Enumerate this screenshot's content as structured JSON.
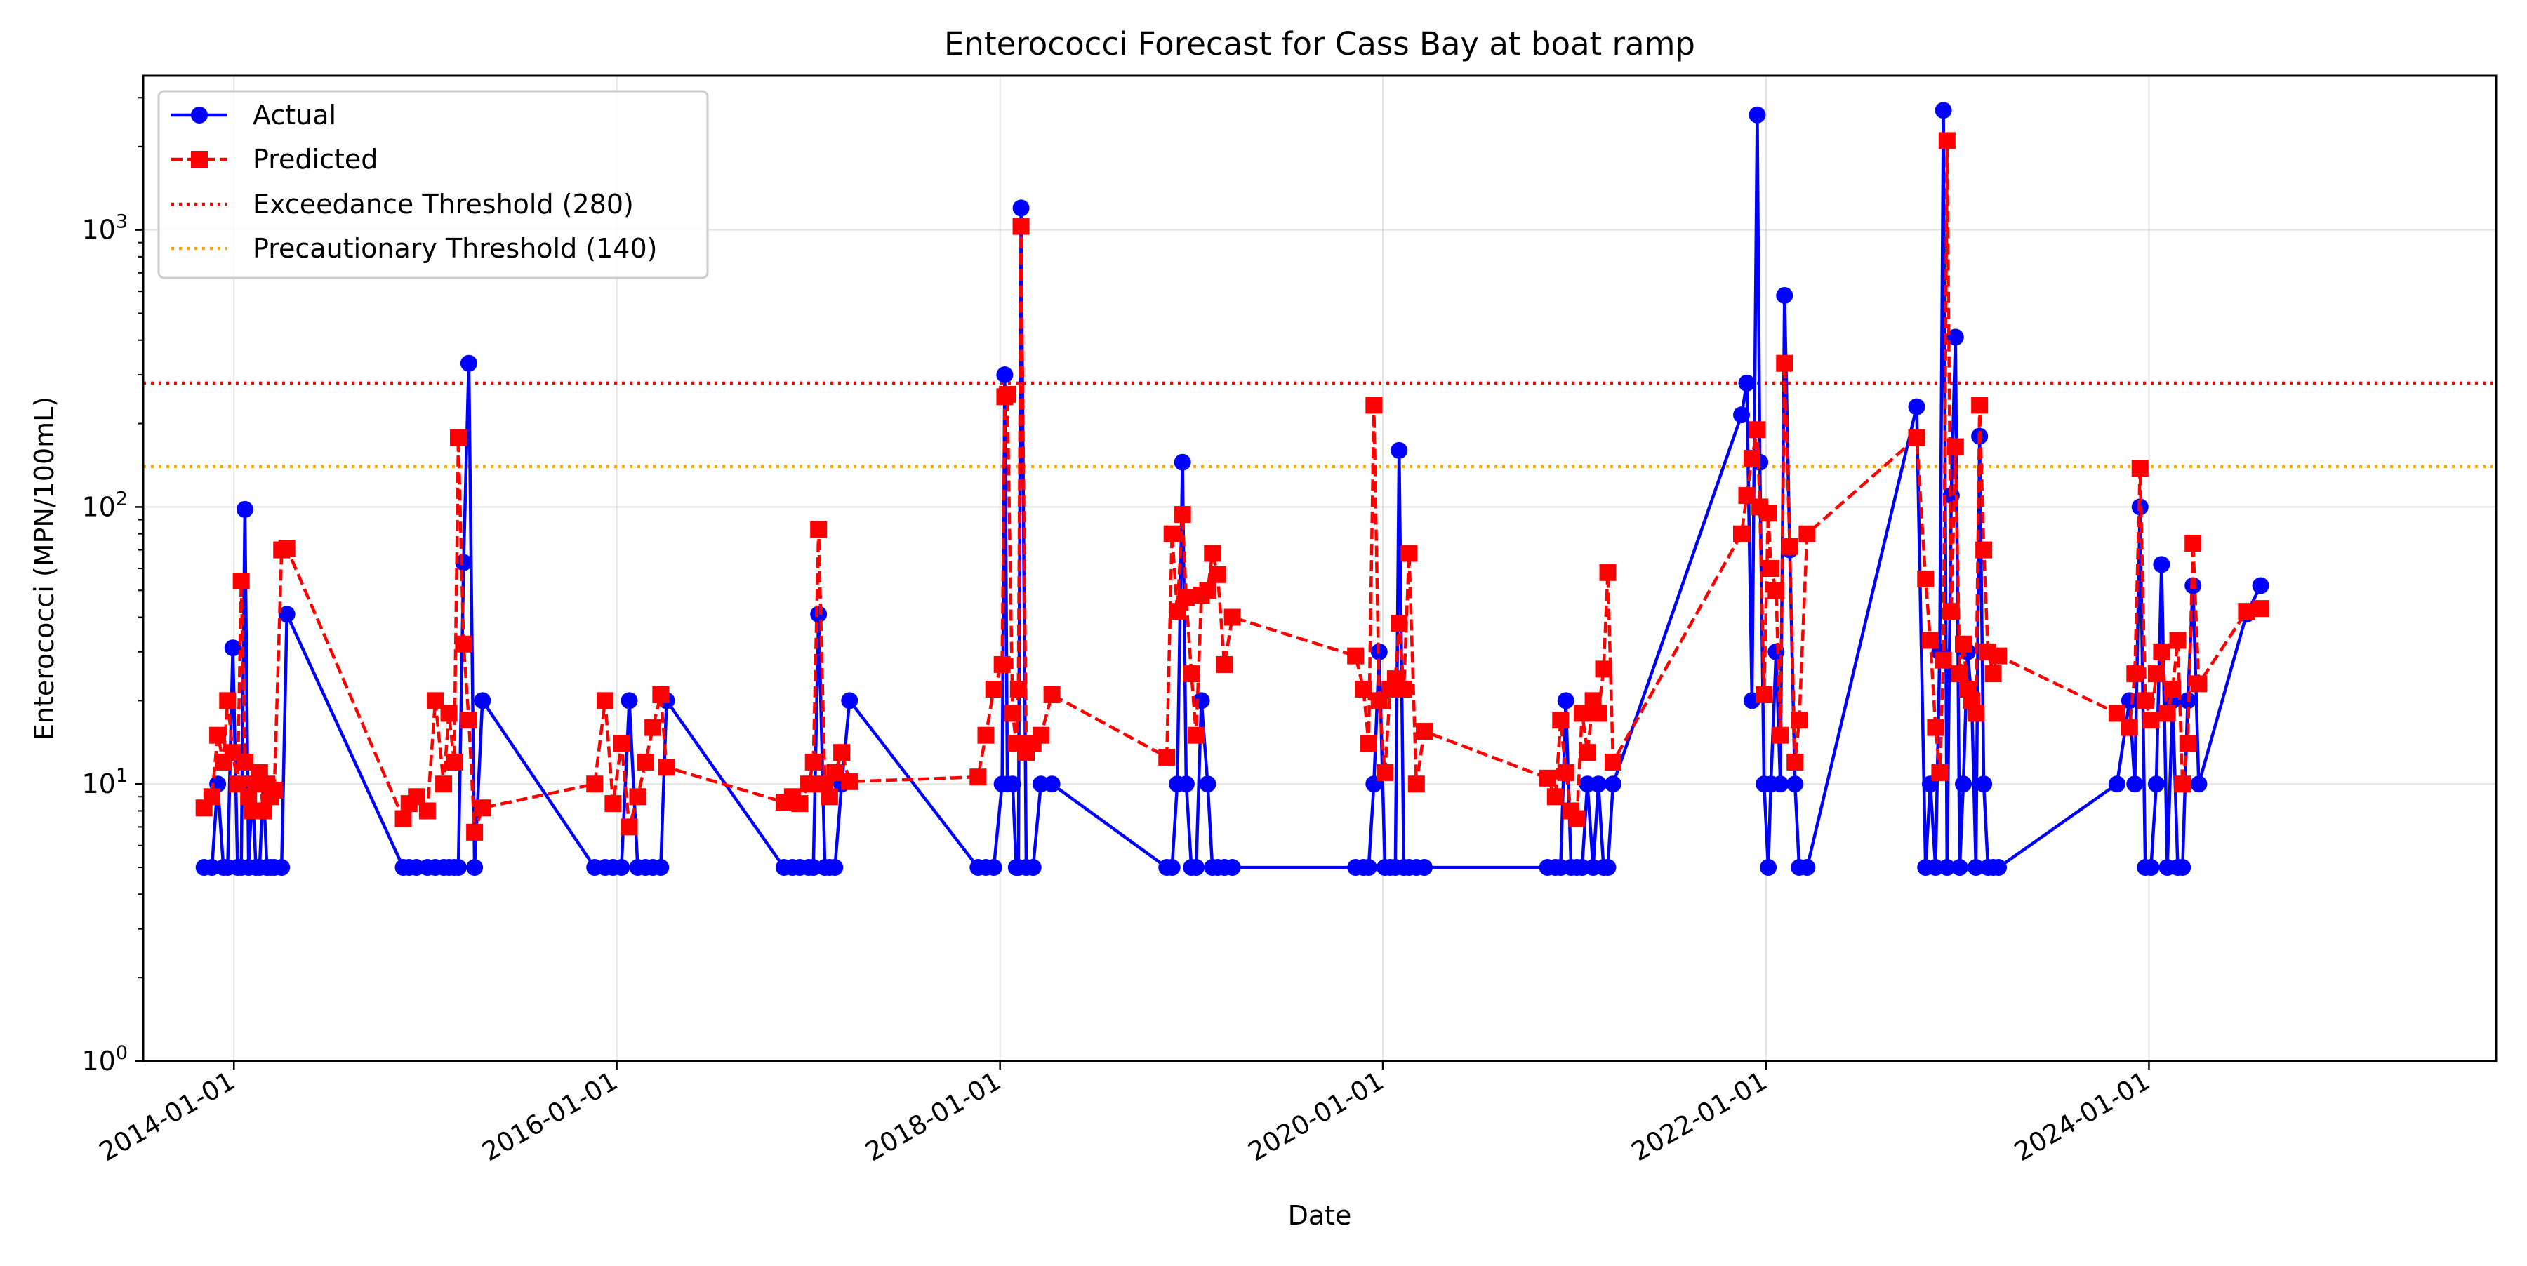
{
  "chart_data": {
    "type": "line",
    "title": "Enterococci Forecast for Cass Bay at boat ramp",
    "xlabel": "Date",
    "ylabel": "Enterococci (MPN/100mL)",
    "x_axis": {
      "type": "date",
      "range": [
        "2013-07-12",
        "2025-10-24"
      ],
      "ticks": [
        "2014-01-01",
        "2016-01-01",
        "2018-01-01",
        "2020-01-01",
        "2022-01-01",
        "2024-01-01"
      ]
    },
    "y_axis": {
      "scale": "log",
      "range": [
        1,
        3600
      ],
      "ticks": [
        1,
        10,
        100,
        1000
      ],
      "tick_labels": [
        "10^0",
        "10^1",
        "10^2",
        "10^3"
      ]
    },
    "grid": true,
    "legend_placement": "top-left",
    "legend": [
      {
        "label": "Actual",
        "style": "solid",
        "marker": "circle",
        "color": "#0000ff"
      },
      {
        "label": "Predicted",
        "style": "dashed",
        "marker": "square",
        "color": "#ff0000"
      },
      {
        "label": "Exceedance Threshold (280)",
        "style": "dotted",
        "marker": "none",
        "color": "#ff0000"
      },
      {
        "label": "Precautionary Threshold (140)",
        "style": "dotted",
        "marker": "none",
        "color": "#ffa500"
      }
    ],
    "thresholds": [
      {
        "name": "Exceedance Threshold (280)",
        "value": 280,
        "color": "#ff0000"
      },
      {
        "name": "Precautionary Threshold (140)",
        "value": 140,
        "color": "#ffa500"
      }
    ],
    "series": [
      {
        "name": "Actual",
        "color": "#0000ff",
        "x": [
          "2013-11-05",
          "2013-11-20",
          "2013-12-01",
          "2013-12-12",
          "2013-12-20",
          "2013-12-30",
          "2014-01-08",
          "2014-01-15",
          "2014-01-22",
          "2014-01-29",
          "2014-02-05",
          "2014-02-12",
          "2014-02-19",
          "2014-02-26",
          "2014-03-05",
          "2014-03-12",
          "2014-03-19",
          "2014-04-02",
          "2014-04-12",
          "2014-11-20",
          "2014-12-01",
          "2014-12-15",
          "2015-01-05",
          "2015-01-20",
          "2015-02-05",
          "2015-02-15",
          "2015-02-25",
          "2015-03-05",
          "2015-03-15",
          "2015-03-25",
          "2015-04-05",
          "2015-04-20",
          "2015-11-20",
          "2015-12-10",
          "2015-12-25",
          "2016-01-10",
          "2016-01-25",
          "2016-02-10",
          "2016-02-25",
          "2016-03-10",
          "2016-03-25",
          "2016-04-05",
          "2016-11-15",
          "2016-12-01",
          "2016-12-15",
          "2017-01-01",
          "2017-01-10",
          "2017-01-20",
          "2017-02-01",
          "2017-02-10",
          "2017-02-20",
          "2017-03-05",
          "2017-03-20",
          "2017-11-20",
          "2017-12-05",
          "2017-12-20",
          "2018-01-05",
          "2018-01-10",
          "2018-01-15",
          "2018-01-25",
          "2018-02-01",
          "2018-02-05",
          "2018-02-10",
          "2018-02-20",
          "2018-03-05",
          "2018-03-20",
          "2018-04-10",
          "2018-11-15",
          "2018-11-25",
          "2018-12-05",
          "2018-12-15",
          "2018-12-22",
          "2019-01-01",
          "2019-01-10",
          "2019-01-20",
          "2019-02-01",
          "2019-02-10",
          "2019-02-20",
          "2019-03-05",
          "2019-03-20",
          "2019-11-10",
          "2019-11-25",
          "2019-12-05",
          "2019-12-15",
          "2019-12-25",
          "2020-01-05",
          "2020-01-15",
          "2020-01-25",
          "2020-02-01",
          "2020-02-10",
          "2020-02-20",
          "2020-03-05",
          "2020-03-20",
          "2020-11-10",
          "2020-11-25",
          "2020-12-05",
          "2020-12-15",
          "2020-12-25",
          "2021-01-05",
          "2021-01-15",
          "2021-01-25",
          "2021-02-05",
          "2021-02-15",
          "2021-02-25",
          "2021-03-05",
          "2021-03-15",
          "2021-11-15",
          "2021-11-25",
          "2021-12-05",
          "2021-12-15",
          "2021-12-20",
          "2021-12-28",
          "2022-01-05",
          "2022-01-10",
          "2022-01-20",
          "2022-01-28",
          "2022-02-05",
          "2022-02-15",
          "2022-02-25",
          "2022-03-05",
          "2022-03-20",
          "2022-10-15",
          "2022-11-01",
          "2022-11-10",
          "2022-11-20",
          "2022-11-28",
          "2022-12-05",
          "2022-12-12",
          "2022-12-20",
          "2022-12-28",
          "2023-01-05",
          "2023-01-12",
          "2023-01-20",
          "2023-01-28",
          "2023-02-05",
          "2023-02-12",
          "2023-02-20",
          "2023-02-28",
          "2023-03-10",
          "2023-03-20",
          "2023-11-01",
          "2023-11-25",
          "2023-12-05",
          "2023-12-15",
          "2023-12-25",
          "2024-01-05",
          "2024-01-15",
          "2024-01-25",
          "2024-02-05",
          "2024-02-15",
          "2024-02-25",
          "2024-03-05",
          "2024-03-15",
          "2024-03-25",
          "2024-04-05",
          "2024-07-05",
          "2024-08-01"
        ],
        "y": [
          5,
          5,
          10,
          5,
          5,
          31,
          5,
          5,
          98,
          5,
          10,
          5,
          5,
          10,
          5,
          5,
          5,
          5,
          41,
          5,
          5,
          5,
          5,
          5,
          5,
          5,
          5,
          5,
          63,
          330,
          5,
          20,
          5,
          5,
          5,
          5,
          20,
          5,
          5,
          5,
          5,
          20,
          5,
          5,
          5,
          5,
          5,
          41,
          5,
          5,
          5,
          10,
          20,
          5,
          5,
          5,
          10,
          300,
          10,
          10,
          5,
          5,
          1200,
          5,
          5,
          10,
          10,
          5,
          5,
          10,
          145,
          10,
          5,
          5,
          20,
          10,
          5,
          5,
          5,
          5,
          5,
          5,
          5,
          10,
          30,
          5,
          5,
          5,
          160,
          5,
          5,
          5,
          5,
          5,
          5,
          5,
          20,
          5,
          5,
          5,
          10,
          5,
          10,
          5,
          5,
          10,
          215,
          280,
          20,
          2600,
          145,
          10,
          5,
          10,
          30,
          10,
          580,
          70,
          10,
          5,
          5,
          230,
          5,
          10,
          5,
          30,
          2700,
          5,
          110,
          410,
          5,
          10,
          30,
          20,
          5,
          180,
          10,
          5,
          5,
          5,
          10,
          20,
          10,
          100,
          5,
          5,
          10,
          62,
          5,
          20,
          5,
          5,
          20,
          52,
          10,
          41,
          52
        ]
      },
      {
        "name": "Predicted",
        "color": "#ff0000",
        "x": [
          "2013-11-05",
          "2013-11-20",
          "2013-12-01",
          "2013-12-12",
          "2013-12-20",
          "2013-12-30",
          "2014-01-08",
          "2014-01-15",
          "2014-01-22",
          "2014-01-29",
          "2014-02-05",
          "2014-02-12",
          "2014-02-19",
          "2014-02-26",
          "2014-03-05",
          "2014-03-12",
          "2014-03-19",
          "2014-04-02",
          "2014-04-12",
          "2014-11-20",
          "2014-12-01",
          "2014-12-15",
          "2015-01-05",
          "2015-01-20",
          "2015-02-05",
          "2015-02-15",
          "2015-02-25",
          "2015-03-05",
          "2015-03-15",
          "2015-03-25",
          "2015-04-05",
          "2015-04-20",
          "2015-11-20",
          "2015-12-10",
          "2015-12-25",
          "2016-01-10",
          "2016-01-25",
          "2016-02-10",
          "2016-02-25",
          "2016-03-10",
          "2016-03-25",
          "2016-04-05",
          "2016-11-15",
          "2016-12-01",
          "2016-12-15",
          "2017-01-01",
          "2017-01-10",
          "2017-01-20",
          "2017-02-01",
          "2017-02-10",
          "2017-02-20",
          "2017-03-05",
          "2017-03-20",
          "2017-11-20",
          "2017-12-05",
          "2017-12-20",
          "2018-01-05",
          "2018-01-10",
          "2018-01-15",
          "2018-01-25",
          "2018-02-01",
          "2018-02-05",
          "2018-02-10",
          "2018-02-20",
          "2018-03-05",
          "2018-03-20",
          "2018-04-10",
          "2018-11-15",
          "2018-11-25",
          "2018-12-05",
          "2018-12-15",
          "2018-12-22",
          "2019-01-01",
          "2019-01-10",
          "2019-01-20",
          "2019-02-01",
          "2019-02-10",
          "2019-02-20",
          "2019-03-05",
          "2019-03-20",
          "2019-11-10",
          "2019-11-25",
          "2019-12-05",
          "2019-12-15",
          "2019-12-25",
          "2020-01-05",
          "2020-01-15",
          "2020-01-25",
          "2020-02-01",
          "2020-02-10",
          "2020-02-20",
          "2020-03-05",
          "2020-03-20",
          "2020-11-10",
          "2020-11-25",
          "2020-12-05",
          "2020-12-15",
          "2020-12-25",
          "2021-01-05",
          "2021-01-15",
          "2021-01-25",
          "2021-02-05",
          "2021-02-15",
          "2021-02-25",
          "2021-03-05",
          "2021-03-15",
          "2021-11-15",
          "2021-11-25",
          "2021-12-05",
          "2021-12-15",
          "2021-12-20",
          "2021-12-28",
          "2022-01-05",
          "2022-01-10",
          "2022-01-20",
          "2022-01-28",
          "2022-02-05",
          "2022-02-15",
          "2022-02-25",
          "2022-03-05",
          "2022-03-20",
          "2022-10-15",
          "2022-11-01",
          "2022-11-10",
          "2022-11-20",
          "2022-11-28",
          "2022-12-05",
          "2022-12-12",
          "2022-12-20",
          "2022-12-28",
          "2023-01-05",
          "2023-01-12",
          "2023-01-20",
          "2023-01-28",
          "2023-02-05",
          "2023-02-12",
          "2023-02-20",
          "2023-02-28",
          "2023-03-10",
          "2023-03-20",
          "2023-11-01",
          "2023-11-25",
          "2023-12-05",
          "2023-12-15",
          "2023-12-25",
          "2024-01-05",
          "2024-01-15",
          "2024-01-25",
          "2024-02-05",
          "2024-02-15",
          "2024-02-25",
          "2024-03-05",
          "2024-03-15",
          "2024-03-25",
          "2024-04-05",
          "2024-07-05",
          "2024-08-01"
        ],
        "y": [
          8.2,
          9,
          15,
          12,
          20,
          13,
          10,
          54,
          12,
          9,
          8,
          10,
          11,
          8,
          10,
          9,
          9.5,
          70,
          71,
          7.5,
          8.5,
          9,
          8,
          20,
          10,
          18,
          12,
          178,
          32,
          17,
          6.7,
          8.2,
          10,
          20,
          8.5,
          14,
          7,
          9,
          12,
          16,
          21,
          11.5,
          8.6,
          9,
          8.5,
          10,
          12,
          83,
          10,
          9,
          11,
          13,
          10.2,
          10.6,
          15,
          22,
          27,
          250,
          255,
          18,
          14,
          22,
          1030,
          13,
          14,
          15,
          21,
          12.5,
          80,
          42,
          94,
          47,
          25,
          15,
          48,
          50,
          68,
          57,
          27,
          40,
          29,
          22,
          14,
          233,
          20,
          11,
          22,
          24,
          38,
          22,
          68,
          10,
          15.5,
          10.5,
          9,
          17,
          11,
          8,
          7.5,
          18,
          13,
          20,
          18,
          26,
          58,
          12,
          80,
          110,
          150,
          190,
          100,
          21,
          95,
          60,
          50,
          15,
          330,
          72,
          12,
          17,
          80,
          178,
          55,
          33,
          16,
          11,
          28,
          2100,
          42,
          165,
          25,
          32,
          22,
          20,
          18,
          233,
          70,
          30,
          25,
          29,
          18,
          16,
          25,
          138,
          20,
          17,
          25,
          30,
          18,
          22,
          33,
          10,
          14,
          74,
          23,
          42,
          43
        ]
      }
    ]
  }
}
